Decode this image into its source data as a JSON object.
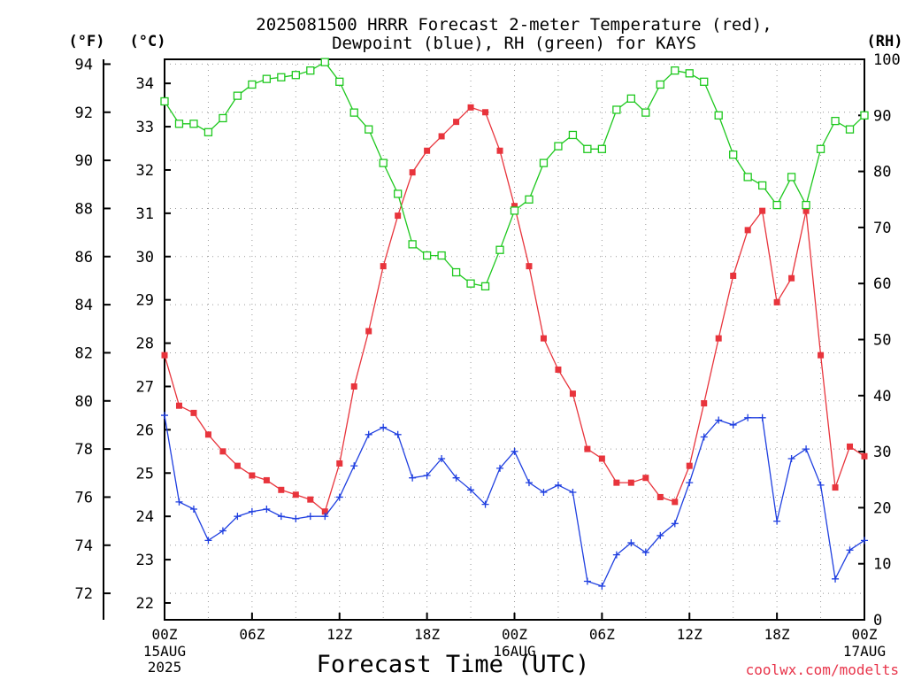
{
  "title": {
    "line1": "2025081500 HRRR Forecast 2-meter Temperature (red),",
    "line2": "Dewpoint (blue), RH (green) for KAYS"
  },
  "units": {
    "fahrenheit": "(°F)",
    "celsius": "(°C)",
    "rh": "(RH)"
  },
  "credit": "coolwx.com/modelts",
  "chart_data": {
    "type": "line",
    "title": "2025081500 HRRR Forecast 2-meter Temperature (red), Dewpoint (blue), RH (green) for KAYS",
    "xlabel": "Forecast Time (UTC)",
    "x_hours": [
      0,
      1,
      2,
      3,
      4,
      5,
      6,
      7,
      8,
      9,
      10,
      11,
      12,
      13,
      14,
      15,
      16,
      17,
      18,
      19,
      20,
      21,
      22,
      23,
      24,
      25,
      26,
      27,
      28,
      29,
      30,
      31,
      32,
      33,
      34,
      35,
      36,
      37,
      38,
      39,
      40,
      41,
      42,
      43,
      44,
      45,
      46,
      47,
      48
    ],
    "x_ticks": [
      {
        "hour": 0,
        "label": "00Z",
        "sub1": "15AUG",
        "sub2": "2025"
      },
      {
        "hour": 6,
        "label": "06Z"
      },
      {
        "hour": 12,
        "label": "12Z"
      },
      {
        "hour": 18,
        "label": "18Z"
      },
      {
        "hour": 24,
        "label": "00Z",
        "sub1": "16AUG"
      },
      {
        "hour": 30,
        "label": "06Z"
      },
      {
        "hour": 36,
        "label": "12Z"
      },
      {
        "hour": 42,
        "label": "18Z"
      },
      {
        "hour": 48,
        "label": "00Z",
        "sub1": "17AUG"
      }
    ],
    "xlim": [
      0,
      48
    ],
    "y_left_f": {
      "ticks": [
        72,
        74,
        76,
        78,
        80,
        82,
        84,
        86,
        88,
        90,
        92,
        94
      ],
      "lim": [
        70.9,
        94.2
      ]
    },
    "y_left_c": {
      "ticks": [
        22,
        23,
        24,
        25,
        26,
        27,
        28,
        29,
        30,
        31,
        32,
        33,
        34
      ]
    },
    "y_right_rh": {
      "ticks": [
        0,
        10,
        20,
        30,
        40,
        50,
        60,
        70,
        80,
        90,
        100
      ],
      "lim": [
        0,
        100
      ]
    },
    "series": [
      {
        "name": "Temperature",
        "color": "#e8343c",
        "marker": "filled-square",
        "axis": "F",
        "values": [
          81.9,
          79.8,
          79.5,
          78.6,
          77.9,
          77.3,
          76.9,
          76.7,
          76.3,
          76.1,
          75.9,
          75.4,
          77.4,
          80.6,
          82.9,
          85.6,
          87.7,
          89.5,
          90.4,
          91.0,
          91.6,
          92.2,
          92.0,
          90.4,
          88.1,
          85.6,
          82.6,
          81.3,
          80.3,
          78.0,
          77.6,
          76.6,
          76.6,
          76.8,
          76.0,
          75.8,
          77.3,
          79.9,
          82.6,
          85.2,
          87.1,
          87.9,
          84.1,
          85.1,
          87.9,
          81.9,
          76.4,
          78.1,
          77.7
        ]
      },
      {
        "name": "Dewpoint",
        "color": "#1f3fe0",
        "marker": "plus",
        "axis": "F",
        "values": [
          79.4,
          75.8,
          75.5,
          74.2,
          74.6,
          75.2,
          75.4,
          75.5,
          75.2,
          75.1,
          75.2,
          75.2,
          76.0,
          77.3,
          78.6,
          78.9,
          78.6,
          76.8,
          76.9,
          77.6,
          76.8,
          76.3,
          75.7,
          77.2,
          77.9,
          76.6,
          76.2,
          76.5,
          76.2,
          72.5,
          72.3,
          73.6,
          74.1,
          73.7,
          74.4,
          74.9,
          76.6,
          78.5,
          79.2,
          79.0,
          79.3,
          79.3,
          75.0,
          77.6,
          78.0,
          76.5,
          72.6,
          73.8,
          74.2
        ]
      },
      {
        "name": "RH",
        "color": "#1ec81e",
        "marker": "open-square",
        "axis": "RH",
        "values": [
          92.5,
          88.5,
          88.5,
          87,
          89.5,
          93.5,
          95.5,
          96.5,
          96.8,
          97.2,
          98,
          99.5,
          96,
          90.5,
          87.5,
          81.5,
          76,
          67,
          65,
          65,
          62,
          60,
          59.5,
          66,
          73,
          75,
          81.5,
          84.5,
          86.5,
          84,
          84,
          91,
          93,
          90.5,
          95.5,
          98,
          97.5,
          96,
          90,
          83,
          79,
          77.5,
          74,
          79,
          74,
          84,
          89,
          87.5,
          90
        ]
      }
    ],
    "grid": true,
    "legend": "none (series identified in title)"
  }
}
